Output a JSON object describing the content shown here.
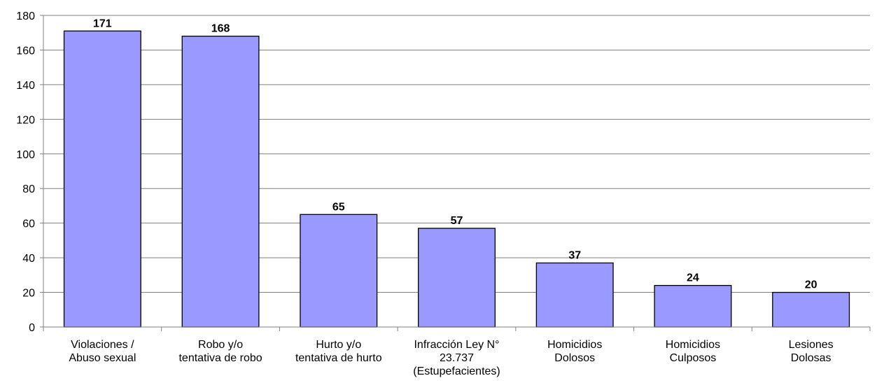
{
  "chart_data": {
    "type": "bar",
    "categories": [
      [
        "Violaciones /",
        "Abuso sexual"
      ],
      [
        "Robo y/o",
        "tentativa de robo"
      ],
      [
        "Hurto y/o",
        "tentativa de hurto"
      ],
      [
        "Infracción Ley N°",
        "23.737",
        "(Estupefacientes)"
      ],
      [
        "Homicidios",
        "Dolosos"
      ],
      [
        "Homicidios",
        "Culposos"
      ],
      [
        "Lesiones",
        "Dolosas"
      ]
    ],
    "values": [
      171,
      168,
      65,
      57,
      37,
      24,
      20
    ],
    "data_labels": [
      "171",
      "168",
      "65",
      "57",
      "37",
      "24",
      "20"
    ],
    "title": "",
    "xlabel": "",
    "ylabel": "",
    "ylim": [
      0,
      180
    ],
    "yticks": [
      0,
      20,
      40,
      60,
      80,
      100,
      120,
      140,
      160,
      180
    ],
    "grid": true,
    "legend": "none",
    "bar_color": "#9999ff"
  }
}
